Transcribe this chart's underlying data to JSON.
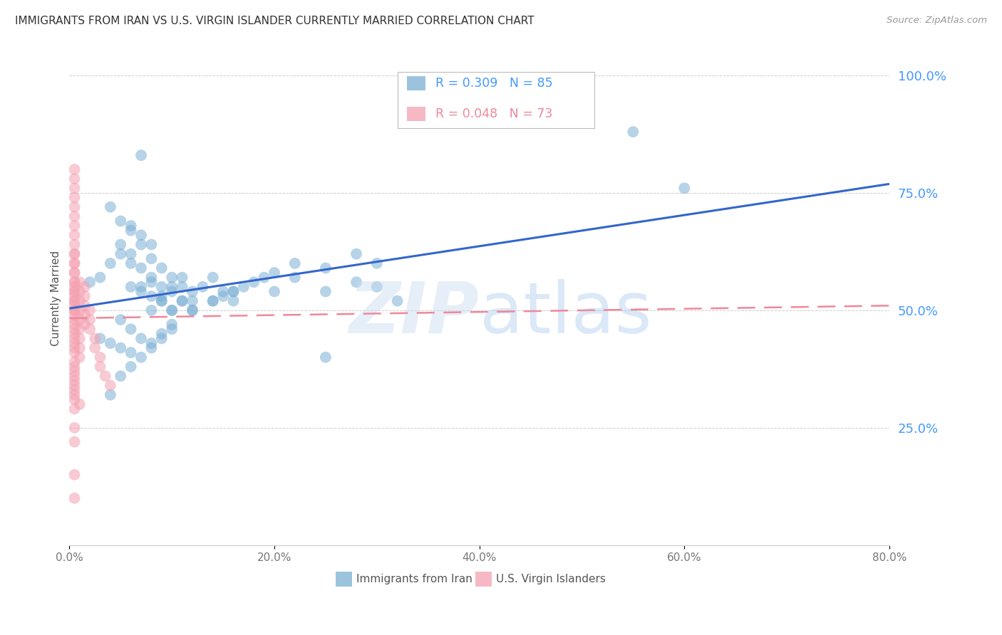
{
  "title": "IMMIGRANTS FROM IRAN VS U.S. VIRGIN ISLANDER CURRENTLY MARRIED CORRELATION CHART",
  "source": "Source: ZipAtlas.com",
  "ylabel": "Currently Married",
  "x_tick_labels": [
    "0.0%",
    "20.0%",
    "40.0%",
    "60.0%",
    "80.0%"
  ],
  "x_tick_values": [
    0.0,
    0.2,
    0.4,
    0.6,
    0.8
  ],
  "y_tick_labels": [
    "25.0%",
    "50.0%",
    "75.0%",
    "100.0%"
  ],
  "y_tick_values": [
    0.25,
    0.5,
    0.75,
    1.0
  ],
  "xlim": [
    0.0,
    0.8
  ],
  "ylim": [
    0.0,
    1.05
  ],
  "legend_label_blue": "Immigrants from Iran",
  "legend_label_pink": "U.S. Virgin Islanders",
  "R_blue": 0.309,
  "N_blue": 85,
  "R_pink": 0.048,
  "N_pink": 73,
  "blue_color": "#7BAFD4",
  "pink_color": "#F4A0B0",
  "blue_line_color": "#3366CC",
  "pink_line_color": "#EE8899",
  "tick_color_right": "#4499FF",
  "blue_scatter_x": [
    0.02,
    0.03,
    0.04,
    0.05,
    0.06,
    0.07,
    0.08,
    0.09,
    0.1,
    0.11,
    0.12,
    0.13,
    0.14,
    0.15,
    0.16,
    0.06,
    0.07,
    0.08,
    0.04,
    0.05,
    0.06,
    0.07,
    0.08,
    0.09,
    0.1,
    0.11,
    0.12,
    0.05,
    0.06,
    0.07,
    0.08,
    0.09,
    0.1,
    0.11,
    0.12,
    0.14,
    0.16,
    0.18,
    0.2,
    0.22,
    0.15,
    0.17,
    0.19,
    0.25,
    0.28,
    0.3,
    0.32,
    0.12,
    0.14,
    0.16,
    0.03,
    0.04,
    0.05,
    0.06,
    0.07,
    0.08,
    0.09,
    0.1,
    0.06,
    0.07,
    0.08,
    0.09,
    0.1,
    0.11,
    0.05,
    0.06,
    0.07,
    0.08,
    0.09,
    0.1,
    0.2,
    0.22,
    0.25,
    0.28,
    0.3,
    0.08,
    0.09,
    0.1,
    0.55,
    0.6,
    0.04,
    0.05,
    0.06,
    0.25,
    0.07
  ],
  "blue_scatter_y": [
    0.56,
    0.57,
    0.6,
    0.62,
    0.6,
    0.55,
    0.53,
    0.52,
    0.5,
    0.52,
    0.54,
    0.55,
    0.57,
    0.54,
    0.52,
    0.68,
    0.66,
    0.64,
    0.72,
    0.69,
    0.67,
    0.64,
    0.61,
    0.59,
    0.57,
    0.55,
    0.52,
    0.64,
    0.62,
    0.59,
    0.57,
    0.55,
    0.54,
    0.52,
    0.5,
    0.52,
    0.54,
    0.56,
    0.54,
    0.57,
    0.53,
    0.55,
    0.57,
    0.54,
    0.56,
    0.55,
    0.52,
    0.5,
    0.52,
    0.54,
    0.44,
    0.43,
    0.42,
    0.41,
    0.4,
    0.42,
    0.44,
    0.46,
    0.55,
    0.54,
    0.56,
    0.53,
    0.55,
    0.57,
    0.48,
    0.46,
    0.44,
    0.5,
    0.52,
    0.5,
    0.58,
    0.6,
    0.59,
    0.62,
    0.6,
    0.43,
    0.45,
    0.47,
    0.88,
    0.76,
    0.32,
    0.36,
    0.38,
    0.4,
    0.83
  ],
  "pink_scatter_x": [
    0.005,
    0.005,
    0.005,
    0.005,
    0.005,
    0.005,
    0.005,
    0.005,
    0.005,
    0.005,
    0.005,
    0.005,
    0.005,
    0.005,
    0.005,
    0.005,
    0.005,
    0.005,
    0.005,
    0.005,
    0.005,
    0.005,
    0.005,
    0.005,
    0.005,
    0.005,
    0.005,
    0.005,
    0.005,
    0.005,
    0.005,
    0.005,
    0.005,
    0.005,
    0.005,
    0.005,
    0.005,
    0.005,
    0.005,
    0.005,
    0.01,
    0.01,
    0.01,
    0.01,
    0.01,
    0.01,
    0.01,
    0.01,
    0.01,
    0.015,
    0.015,
    0.015,
    0.015,
    0.015,
    0.02,
    0.02,
    0.02,
    0.025,
    0.025,
    0.03,
    0.03,
    0.035,
    0.04,
    0.005,
    0.005,
    0.005,
    0.005,
    0.005,
    0.005,
    0.005,
    0.005,
    0.005,
    0.01
  ],
  "pink_scatter_y": [
    0.6,
    0.62,
    0.58,
    0.56,
    0.54,
    0.52,
    0.5,
    0.48,
    0.46,
    0.44,
    0.42,
    0.58,
    0.56,
    0.54,
    0.52,
    0.5,
    0.64,
    0.62,
    0.6,
    0.66,
    0.68,
    0.7,
    0.55,
    0.53,
    0.51,
    0.49,
    0.47,
    0.45,
    0.43,
    0.41,
    0.39,
    0.37,
    0.35,
    0.33,
    0.31,
    0.29,
    0.38,
    0.36,
    0.34,
    0.32,
    0.56,
    0.54,
    0.52,
    0.5,
    0.48,
    0.46,
    0.44,
    0.42,
    0.4,
    0.55,
    0.53,
    0.51,
    0.49,
    0.47,
    0.5,
    0.48,
    0.46,
    0.44,
    0.42,
    0.4,
    0.38,
    0.36,
    0.34,
    0.78,
    0.74,
    0.72,
    0.76,
    0.8,
    0.25,
    0.22,
    0.15,
    0.1,
    0.3
  ],
  "blue_line_y_start": 0.504,
  "blue_line_y_end": 0.769,
  "pink_line_y_start": 0.483,
  "pink_line_y_end": 0.51
}
